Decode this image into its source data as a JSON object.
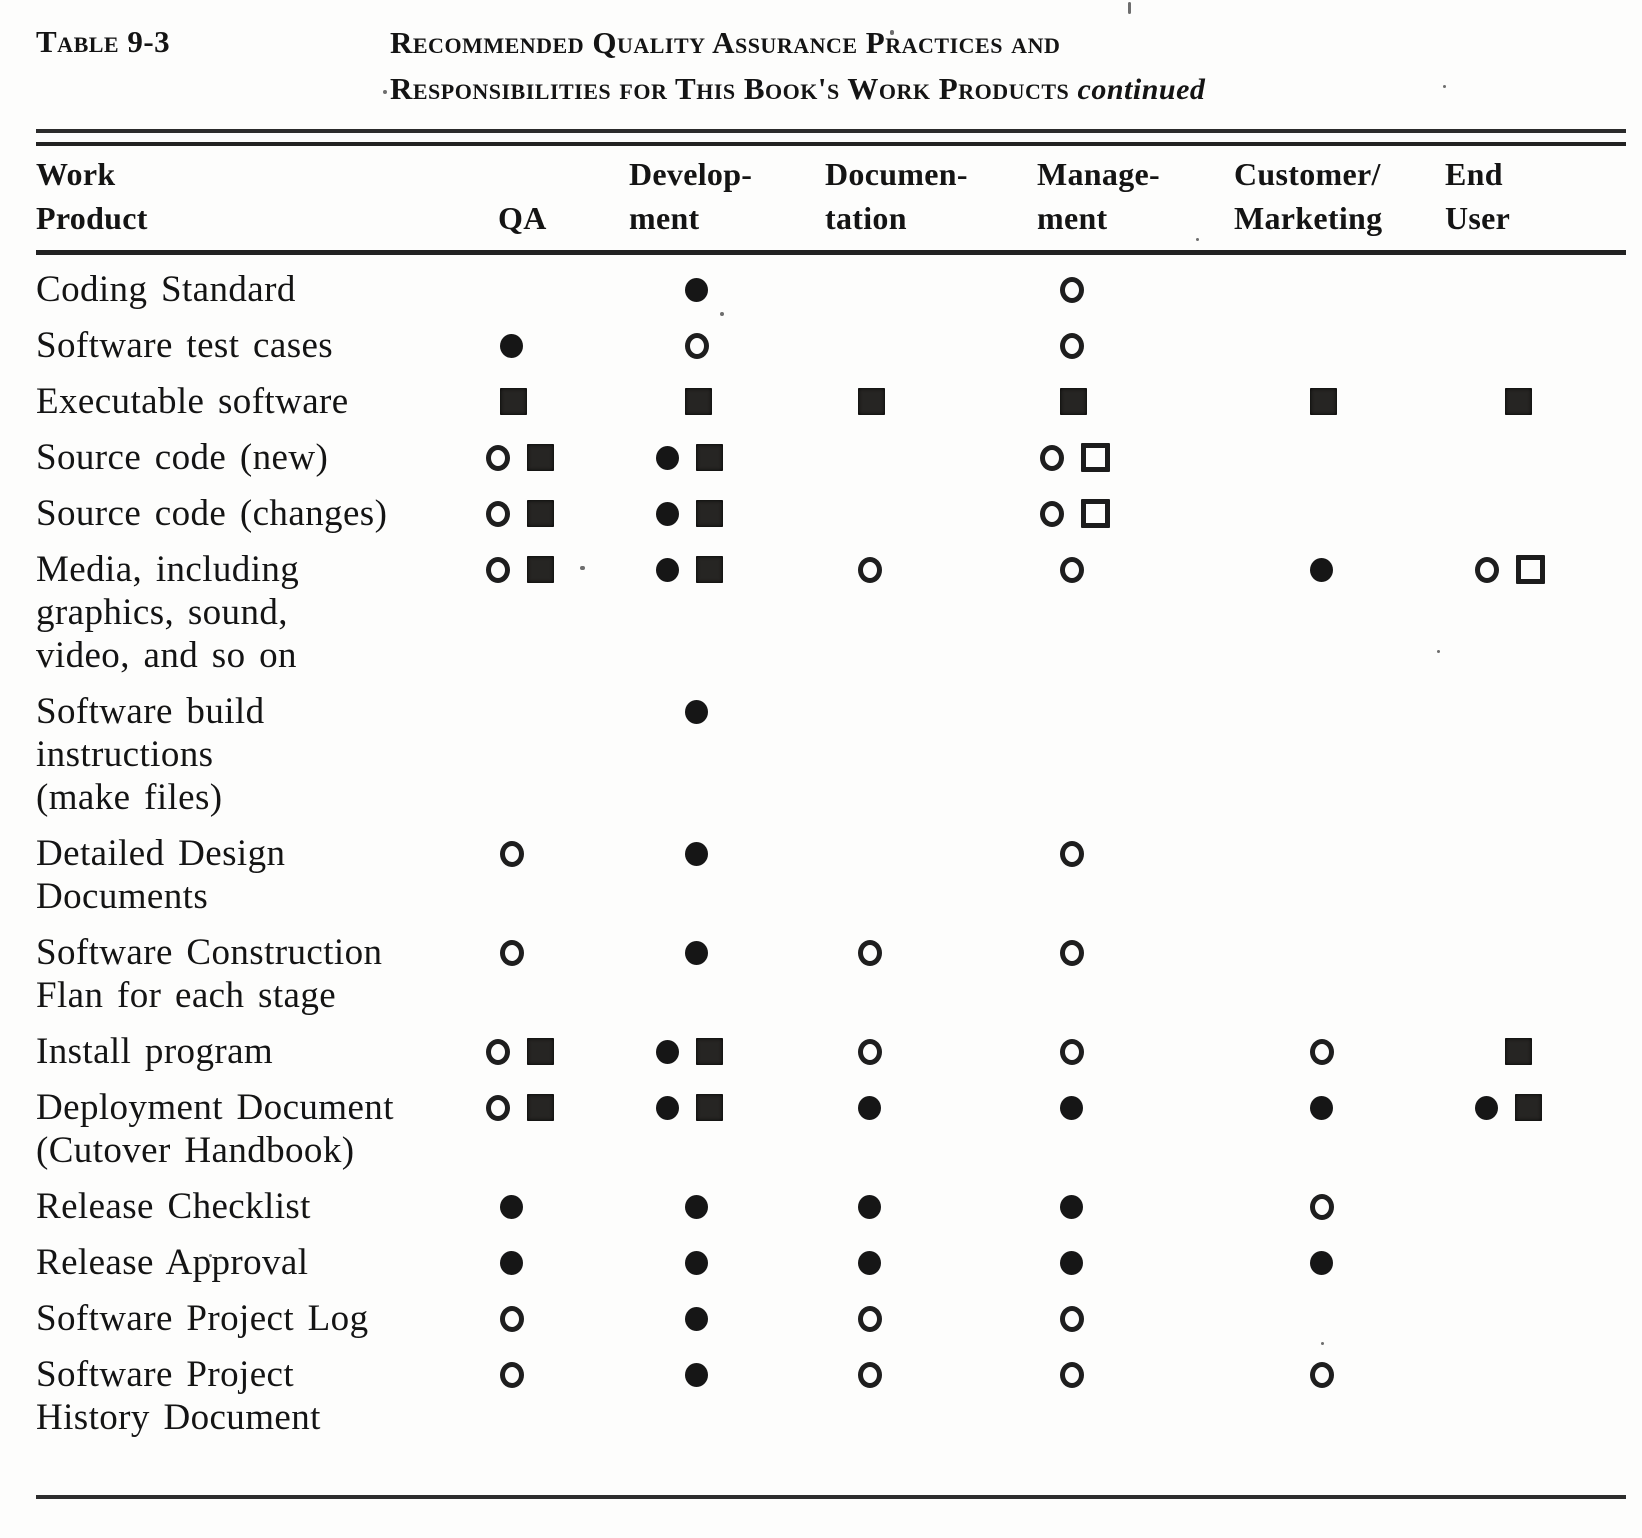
{
  "page": {
    "table_label": "Table 9-3",
    "title_line1": "Recommended Quality Assurance Practices and",
    "title_line2": "Responsibilities for This Book's Work Products",
    "title_continued": "continued"
  },
  "header": {
    "work_product_lines": [
      "Work",
      "Product"
    ],
    "columns": [
      {
        "id": "qa",
        "lines": [
          "QA"
        ]
      },
      {
        "id": "development",
        "lines": [
          "Develop-",
          "ment"
        ]
      },
      {
        "id": "documentation",
        "lines": [
          "Documen-",
          "tation"
        ]
      },
      {
        "id": "management",
        "lines": [
          "Manage-",
          "ment"
        ]
      },
      {
        "id": "customer_marketing",
        "lines": [
          "Customer/",
          "Marketing"
        ]
      },
      {
        "id": "end_user",
        "lines": [
          "End",
          "User"
        ]
      }
    ]
  },
  "symbols": {
    "fc": "filled-circle",
    "oc": "open-circle",
    "fs": "filled-square",
    "os": "open-square"
  },
  "rows": [
    {
      "label_lines": [
        "Coding Standard"
      ],
      "cells": {
        "qa": [],
        "development": [
          "fc"
        ],
        "documentation": [],
        "management": [
          "oc"
        ],
        "customer_marketing": [],
        "end_user": []
      }
    },
    {
      "label_lines": [
        "Software test cases"
      ],
      "cells": {
        "qa": [
          "fc"
        ],
        "development": [
          "oc"
        ],
        "documentation": [],
        "management": [
          "oc"
        ],
        "customer_marketing": [],
        "end_user": []
      }
    },
    {
      "label_lines": [
        "Executable software"
      ],
      "cells": {
        "qa": [
          "fs"
        ],
        "development": [
          "fs"
        ],
        "documentation": [
          "fs"
        ],
        "management": [
          "fs"
        ],
        "customer_marketing": [
          "fs"
        ],
        "end_user": [
          "fs"
        ]
      }
    },
    {
      "label_lines": [
        "Source code (new)"
      ],
      "cells": {
        "qa": [
          "oc",
          "fs"
        ],
        "development": [
          "fc",
          "fs"
        ],
        "documentation": [],
        "management": [
          "oc",
          "os"
        ],
        "customer_marketing": [],
        "end_user": []
      }
    },
    {
      "label_lines": [
        "Source code (changes)"
      ],
      "cells": {
        "qa": [
          "oc",
          "fs"
        ],
        "development": [
          "fc",
          "fs"
        ],
        "documentation": [],
        "management": [
          "oc",
          "os"
        ],
        "customer_marketing": [],
        "end_user": []
      }
    },
    {
      "label_lines": [
        "Media, including",
        "graphics, sound,",
        "video, and so on"
      ],
      "cells": {
        "qa": [
          "oc",
          "fs"
        ],
        "development": [
          "fc",
          "fs"
        ],
        "documentation": [
          "oc"
        ],
        "management": [
          "oc"
        ],
        "customer_marketing": [
          "fc"
        ],
        "end_user": [
          "oc",
          "os"
        ]
      }
    },
    {
      "label_lines": [
        "Software build",
        "instructions",
        "(make files)"
      ],
      "cells": {
        "qa": [],
        "development": [
          "fc"
        ],
        "documentation": [],
        "management": [],
        "customer_marketing": [],
        "end_user": []
      }
    },
    {
      "label_lines": [
        "Detailed Design",
        "Documents"
      ],
      "cells": {
        "qa": [
          "oc"
        ],
        "development": [
          "fc"
        ],
        "documentation": [],
        "management": [
          "oc"
        ],
        "customer_marketing": [],
        "end_user": []
      }
    },
    {
      "label_lines": [
        "Software Construction",
        "Flan for each stage"
      ],
      "cells": {
        "qa": [
          "oc"
        ],
        "development": [
          "fc"
        ],
        "documentation": [
          "oc"
        ],
        "management": [
          "oc"
        ],
        "customer_marketing": [],
        "end_user": []
      }
    },
    {
      "label_lines": [
        "Install program"
      ],
      "cells": {
        "qa": [
          "oc",
          "fs"
        ],
        "development": [
          "fc",
          "fs"
        ],
        "documentation": [
          "oc"
        ],
        "management": [
          "oc"
        ],
        "customer_marketing": [
          "oc"
        ],
        "end_user": [
          "fs"
        ]
      }
    },
    {
      "label_lines": [
        "Deployment Document",
        "(Cutover Handbook)"
      ],
      "cells": {
        "qa": [
          "oc",
          "fs"
        ],
        "development": [
          "fc",
          "fs"
        ],
        "documentation": [
          "fc"
        ],
        "management": [
          "fc"
        ],
        "customer_marketing": [
          "fc"
        ],
        "end_user": [
          "fc",
          "fs"
        ]
      }
    },
    {
      "label_lines": [
        "Release Checklist"
      ],
      "cells": {
        "qa": [
          "fc"
        ],
        "development": [
          "fc"
        ],
        "documentation": [
          "fc"
        ],
        "management": [
          "fc"
        ],
        "customer_marketing": [
          "oc"
        ],
        "end_user": []
      }
    },
    {
      "label_lines": [
        "Release Approval"
      ],
      "cells": {
        "qa": [
          "fc"
        ],
        "development": [
          "fc"
        ],
        "documentation": [
          "fc"
        ],
        "management": [
          "fc"
        ],
        "customer_marketing": [
          "fc"
        ],
        "end_user": []
      }
    },
    {
      "label_lines": [
        "Software Project Log"
      ],
      "cells": {
        "qa": [
          "oc"
        ],
        "development": [
          "fc"
        ],
        "documentation": [
          "oc"
        ],
        "management": [
          "oc"
        ],
        "customer_marketing": [],
        "end_user": []
      }
    },
    {
      "label_lines": [
        "Software Project",
        "History Document"
      ],
      "cells": {
        "qa": [
          "oc"
        ],
        "development": [
          "fc"
        ],
        "documentation": [
          "oc"
        ],
        "management": [
          "oc"
        ],
        "customer_marketing": [
          "oc"
        ],
        "end_user": []
      }
    }
  ]
}
